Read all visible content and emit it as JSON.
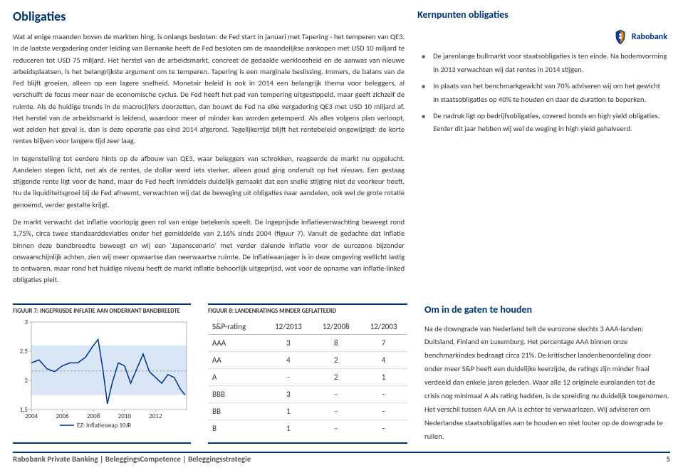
{
  "heading": "Obligaties",
  "para1": "Wat al enige maanden boven de markten hing, is onlangs besloten: de Fed start in januari met Tapering - het temperen van QE3. In de laatste vergadering onder leiding van Bernanke heeft de Fed besloten om de maandelijkse aankopen met USD 10 miljard te reduceren tot USD 75 miljard. Het herstel van de arbeidsmarkt, concreet de gedaalde werkloosheid en de aanwas van nieuwe arbeidsplaatsen, is het belangrijkste argument om te temperen. Tapering is een marginale beslissing. Immers, de balans van de Fed blijft groeien, alleen op een lagere snelheid. Monetair beleid is ook in 2014 een belangrijk thema voor beleggers, al verschuift de focus meer naar de economische cyclus. De Fed heeft het pad van tempering uitgestippeld, maar geeft zichzelf de ruimte. Als de huidige trends in de macrocijfers doorzetten, dan bouwt de Fed na elke vergadering QE3 met USD 10 miljard af. Het herstel van de arbeidsmarkt is leidend, waardoor meer of minder kan worden getemperd. Als alles volgens plan verloopt, wat zelden het geval is, dan is deze operatie pas eind 2014 afgerond. Tegelijkertijd blijft het rentebeleid ongewijzigd: de korte rentes blijven voor langere tijd zeer laag.",
  "para2": "In tegenstelling tot eerdere hints op de afbouw van QE3, waar beleggers van schrokken, reageerde de markt nu opgelucht. Aandelen stegen licht, net als de rentes, de dollar werd iets sterker, alleen goud ging onderuit op het nieuws. Een gestaag stijgende rente ligt voor de hand, maar de Fed heeft inmiddels duidelijk gemaakt dat een snelle stijging niet de voorkeur heeft. Nu de liquiditeitsgroei bij de Fed afneemt, verwachten wij dat de beweging uit obligaties naar aandelen, ook wel de grote rotatie genoemd, verder gestalte krijgt.",
  "para3": "De markt verwacht dat inflatie voorlopig geen rol van enige betekenis speelt. De ingeprijsde inflatieverwachting beweegt rond 1,75%, circa twee standaarddeviaties onder het gemiddelde van 2,16% sinds 2004 (figuur 7). Vanuit de gedachte dat inflatie binnen deze bandbreedte beweegt en wij een 'Japanscenario' met verder dalende inflatie voor de eurozone bijzonder onwaarschijnlijk achten, zien wij meer opwaartse dan neerwaartse ruimte. De inflatieaanjager is in deze omgeving wellicht lastig te ontwaren, maar rond het huidige niveau heeft de markt inflatie behoorlijk uitgeprijsd, wat voor de opname van inflatie-linked obligaties pleit.",
  "kern_title": "Kernpunten obligaties",
  "kern_items": [
    "De jarenlange bullmarkt voor staatsobligaties is ten einde. Na bodemvorming in 2013 verwachten wij dat rentes in 2014 stijgen.",
    "In plaats van het benchmarkgewicht van 70% adviseren wij om het gewicht in staatsobligaties op 40% te houden en daar de duration te beperken.",
    "De nadruk ligt op bedrijfsobligaties, covered bonds en high yield obligaties. Eerder dit jaar hebben wij wel de weging in high yield gehalveerd."
  ],
  "logo_text": "Rabobank",
  "fig7_title": "FIGUUR 7: INGEPRIJSDE INFLATIE AAN ONDERKANT BANDBREEDTE",
  "fig8_title": "FIGUUR 8: LANDENRATINGS MINDER GEFLATTEERD",
  "chart": {
    "ylabels": [
      "3",
      "2,5",
      "2",
      "1,5"
    ],
    "yvals": [
      3.0,
      2.5,
      2.0,
      1.5
    ],
    "xlabels": [
      "2004",
      "2006",
      "2008",
      "2010",
      "2012"
    ],
    "xvals": [
      2004,
      2006,
      2008,
      2010,
      2012
    ],
    "legend": "EZ: Inflatieswap 10JR",
    "line_color": "#00308f",
    "band_color": "#d9e6f5",
    "mean_color": "#888888",
    "mean_y": 2.16,
    "band_top": 2.6,
    "band_bot": 1.75,
    "series": [
      [
        2004,
        2.3
      ],
      [
        2004.5,
        2.35
      ],
      [
        2005,
        2.2
      ],
      [
        2005.5,
        2.15
      ],
      [
        2006,
        2.25
      ],
      [
        2006.5,
        2.3
      ],
      [
        2007,
        2.3
      ],
      [
        2007.5,
        2.4
      ],
      [
        2008,
        2.6
      ],
      [
        2008.3,
        2.7
      ],
      [
        2008.6,
        2.2
      ],
      [
        2008.9,
        1.6
      ],
      [
        2009.2,
        1.95
      ],
      [
        2009.6,
        2.3
      ],
      [
        2010,
        2.25
      ],
      [
        2010.4,
        1.95
      ],
      [
        2010.8,
        2.2
      ],
      [
        2011.2,
        2.45
      ],
      [
        2011.6,
        2.15
      ],
      [
        2012,
        2.05
      ],
      [
        2012.4,
        1.95
      ],
      [
        2012.8,
        2.1
      ],
      [
        2013.2,
        2.05
      ],
      [
        2013.6,
        1.85
      ],
      [
        2013.9,
        1.75
      ]
    ],
    "xmin": 2004,
    "xmax": 2014,
    "ymin": 1.5,
    "ymax": 3.0
  },
  "ratings": {
    "head": [
      "S&P-rating",
      "12/2013",
      "12/2008",
      "12/2003"
    ],
    "rows": [
      [
        "AAA",
        "3",
        "8",
        "7"
      ],
      [
        "AA",
        "4",
        "2",
        "4"
      ],
      [
        "A",
        "-",
        "2",
        "1"
      ],
      [
        "BBB",
        "3",
        "-",
        "-"
      ],
      [
        "BB",
        "1",
        "-",
        "-"
      ],
      [
        "B",
        "1",
        "-",
        "-"
      ]
    ]
  },
  "gaten_title": "Om in de gaten te houden",
  "gaten_body": "Na de downgrade van Nederland telt de eurozone slechts 3 AAA-landen: Duitsland, Finland en Luxemburg. Het percentage AAA binnen onze benchmarkindex bedraagt circa 21%. De kritischer landenbeoordeling door onder meer S&P heeft een duidelijke keerzijde, de ratings zijn minder fraai verdeeld dan enkele jaren geleden. Waar alle 12 originele eurolanden tot de crisis nog minimaal A als rating hadden, is de spreiding nu duidelijk toegenomen. Het verschil tussen AAA en AA is echter te verwaarlozen. Wij adviseren om Nederlandse staatsobligaties aan te houden en niet louter op de downgrade te ruilen.",
  "footer_left": "Rabobank Private Banking | BeleggingsCompetence | Beleggingsstrategie",
  "footer_page": "5"
}
